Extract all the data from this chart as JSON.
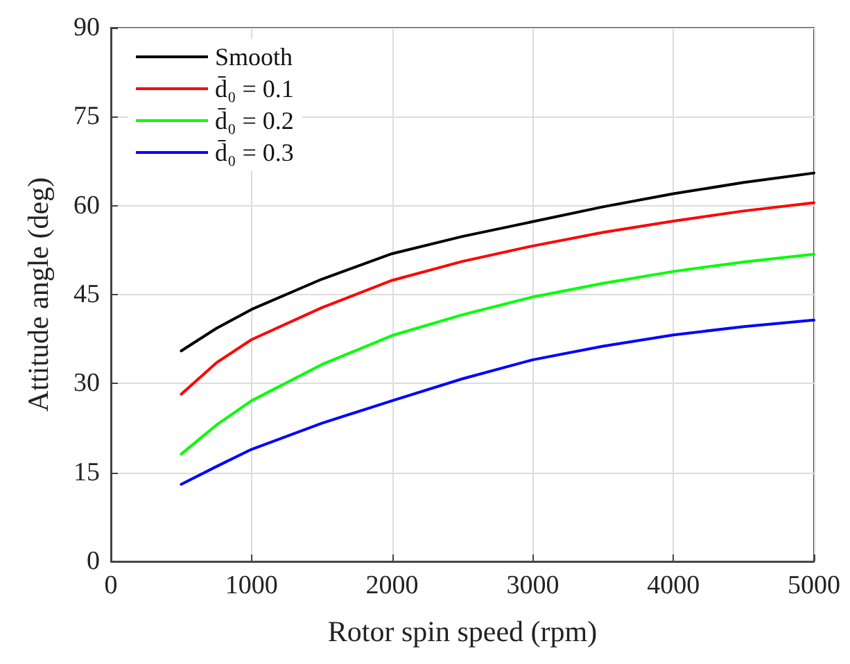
{
  "chart_data": {
    "type": "line",
    "xlabel": "Rotor spin speed (rpm)",
    "ylabel": "Attitude angle (deg)",
    "x": [
      500,
      750,
      1000,
      1500,
      2000,
      2500,
      3000,
      3500,
      4000,
      4500,
      5000
    ],
    "series": [
      {
        "name": "Smooth",
        "color": "#000000",
        "values": [
          35.5,
          39.3,
          42.5,
          47.6,
          51.9,
          54.8,
          57.3,
          59.8,
          62.0,
          63.9,
          65.5
        ]
      },
      {
        "name": "d̄₀ = 0.1",
        "color": "#ff0000",
        "values": [
          28.2,
          33.5,
          37.4,
          42.8,
          47.4,
          50.6,
          53.2,
          55.5,
          57.4,
          59.1,
          60.5
        ]
      },
      {
        "name": "d̄₀ = 0.2",
        "color": "#00ff00",
        "values": [
          18.1,
          23.0,
          27.1,
          33.2,
          38.1,
          41.6,
          44.6,
          46.9,
          48.9,
          50.5,
          51.8
        ]
      },
      {
        "name": "d̄₀ = 0.3",
        "color": "#0000ff",
        "values": [
          13.0,
          16.0,
          18.9,
          23.3,
          27.1,
          30.8,
          34.0,
          36.3,
          38.2,
          39.6,
          40.7
        ]
      }
    ],
    "xlim": [
      0,
      5000
    ],
    "xticks": [
      0,
      1000,
      2000,
      3000,
      4000,
      5000
    ],
    "ylim": [
      0,
      90
    ],
    "yticks": [
      0,
      15,
      30,
      45,
      60,
      75,
      90
    ],
    "grid": true,
    "legend": "top left",
    "marker": "none",
    "line_style": "solid"
  }
}
